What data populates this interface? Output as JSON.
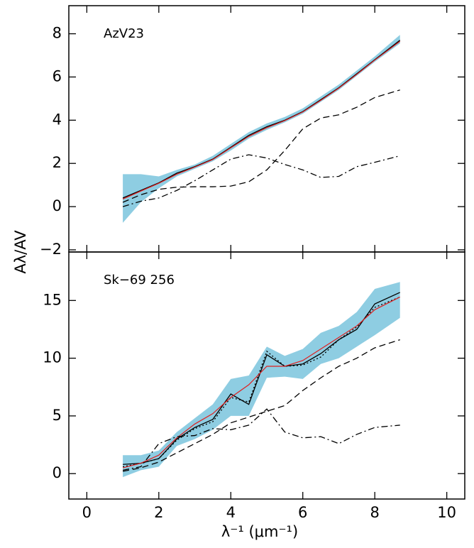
{
  "chart_data": [
    {
      "type": "line",
      "annotation": "AzV23",
      "ylabel": "Aλ/AV",
      "xlim": [
        -0.5,
        10.5
      ],
      "xticks": [
        0,
        2,
        4,
        6,
        8,
        10
      ],
      "show_xtick_labels": false,
      "ylim": [
        -2.1,
        9.3
      ],
      "yticks": [
        {
          "value": -2,
          "label": "−2"
        },
        0,
        2,
        4,
        6,
        8
      ],
      "x": [
        1,
        1.5,
        2,
        2.5,
        3,
        3.5,
        4,
        4.5,
        5,
        5.5,
        6,
        6.5,
        7,
        7.5,
        8,
        8.7
      ],
      "band": {
        "color": "#8ecde2",
        "lower": [
          -0.75,
          0.2,
          0.85,
          1.4,
          1.75,
          2.1,
          2.6,
          3.15,
          3.55,
          3.9,
          4.3,
          4.85,
          5.4,
          6.05,
          6.7,
          7.55
        ],
        "upper": [
          1.5,
          1.5,
          1.4,
          1.7,
          1.95,
          2.35,
          2.9,
          3.45,
          3.85,
          4.15,
          4.55,
          5.1,
          5.65,
          6.3,
          6.95,
          7.95
        ]
      },
      "series": [
        {
          "color": "#000000",
          "style": "solid",
          "values": [
            0.4,
            0.75,
            1.1,
            1.55,
            1.85,
            2.2,
            2.75,
            3.3,
            3.7,
            4.0,
            4.4,
            4.95,
            5.5,
            6.15,
            6.8,
            7.7
          ]
        },
        {
          "color": "#e02020",
          "style": "solid",
          "values": [
            0.35,
            0.72,
            1.08,
            1.5,
            1.83,
            2.18,
            2.72,
            3.25,
            3.65,
            3.98,
            4.38,
            4.92,
            5.48,
            6.12,
            6.78,
            7.65
          ]
        },
        {
          "color": "#000000",
          "style": "dashed",
          "values": [
            0.2,
            0.55,
            0.8,
            0.9,
            0.92,
            0.92,
            0.95,
            1.15,
            1.7,
            2.6,
            3.6,
            4.1,
            4.25,
            4.6,
            5.05,
            5.4
          ]
        },
        {
          "color": "#000000",
          "style": "dashdot",
          "values": [
            0.0,
            0.25,
            0.4,
            0.75,
            1.2,
            1.7,
            2.2,
            2.4,
            2.25,
            1.95,
            1.7,
            1.35,
            1.4,
            1.85,
            2.05,
            2.35
          ]
        }
      ]
    },
    {
      "type": "line",
      "annotation": "Sk−69 256",
      "xlabel": "λ⁻¹ (μm⁻¹)",
      "xlim": [
        -0.5,
        10.5
      ],
      "xticks": [
        0,
        2,
        4,
        6,
        8,
        10
      ],
      "show_xtick_labels": true,
      "ylim": [
        -2.2,
        19.2
      ],
      "yticks": [
        0,
        5,
        10,
        15
      ],
      "x": [
        1,
        1.5,
        2,
        2.5,
        3,
        3.5,
        4,
        4.5,
        5,
        5.5,
        6,
        6.5,
        7,
        7.5,
        8,
        8.7
      ],
      "band": {
        "color": "#8ecde2",
        "lower": [
          -0.3,
          0.3,
          0.6,
          2.4,
          3.0,
          3.8,
          5.0,
          5.0,
          8.3,
          8.4,
          8.2,
          9.5,
          10.0,
          11.0,
          12.0,
          13.5
        ],
        "upper": [
          1.6,
          1.6,
          2.0,
          3.6,
          4.8,
          6.0,
          8.2,
          8.5,
          11.0,
          10.2,
          10.8,
          12.2,
          12.8,
          14.0,
          16.0,
          16.6
        ]
      },
      "series": [
        {
          "color": "#000000",
          "style": "solid",
          "values": [
            0.8,
            0.9,
            1.3,
            3.0,
            4.0,
            4.7,
            6.9,
            6.0,
            10.3,
            9.3,
            9.5,
            10.4,
            11.6,
            12.5,
            14.7,
            15.7
          ]
        },
        {
          "color": "#000000",
          "style": "dotted",
          "values": [
            0.6,
            0.9,
            1.3,
            2.9,
            3.9,
            4.5,
            6.6,
            6.2,
            10.6,
            9.3,
            9.4,
            10.1,
            11.6,
            12.7,
            14.4,
            15.3
          ]
        },
        {
          "color": "#e02020",
          "style": "solid",
          "values": [
            0.5,
            0.9,
            1.6,
            3.1,
            4.3,
            5.2,
            6.6,
            7.7,
            9.3,
            9.3,
            9.8,
            10.8,
            11.8,
            12.8,
            14.2,
            15.3
          ]
        },
        {
          "color": "#000000",
          "style": "dashed",
          "values": [
            0.2,
            0.5,
            1.0,
            1.8,
            2.6,
            3.4,
            4.4,
            4.9,
            5.4,
            5.9,
            7.2,
            8.3,
            9.3,
            10.0,
            10.9,
            11.6
          ]
        },
        {
          "color": "#000000",
          "style": "dashdot",
          "values": [
            0.3,
            0.6,
            2.6,
            3.2,
            3.3,
            3.9,
            3.8,
            4.2,
            5.6,
            3.6,
            3.1,
            3.2,
            2.6,
            3.4,
            4.0,
            4.2
          ]
        }
      ]
    }
  ]
}
